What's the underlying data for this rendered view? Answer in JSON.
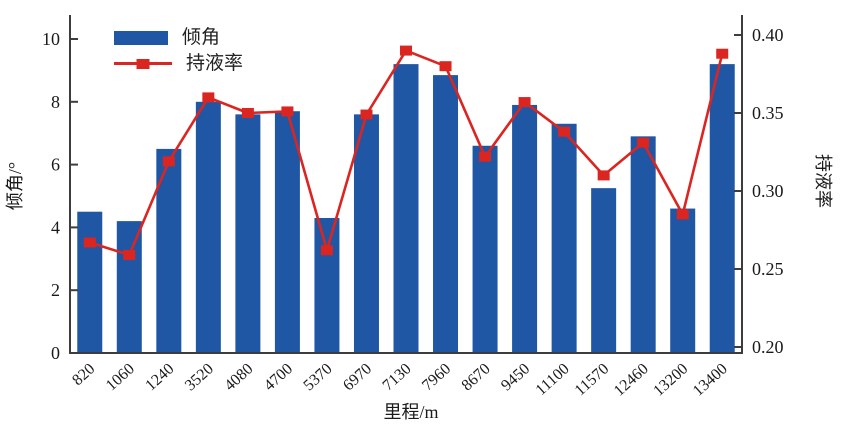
{
  "chart_data": {
    "type": "bar",
    "title": "",
    "categories": [
      "820",
      "1060",
      "1240",
      "3520",
      "4080",
      "4700",
      "5370",
      "6970",
      "7130",
      "7960",
      "8670",
      "9450",
      "11100",
      "11570",
      "12460",
      "13200",
      "13400"
    ],
    "series": [
      {
        "name": "倾角",
        "type": "bar",
        "axis": "left",
        "values": [
          4.5,
          4.2,
          6.5,
          8.0,
          7.6,
          7.7,
          4.3,
          7.6,
          9.2,
          8.85,
          6.6,
          7.9,
          7.3,
          5.25,
          6.9,
          4.6,
          9.2
        ]
      },
      {
        "name": "持液率",
        "type": "line",
        "axis": "right",
        "values": [
          0.267,
          0.259,
          0.319,
          0.36,
          0.35,
          0.351,
          0.262,
          0.349,
          0.39,
          0.38,
          0.322,
          0.357,
          0.338,
          0.31,
          0.331,
          0.285,
          0.388
        ]
      }
    ],
    "left_axis": {
      "label": "倾角/°",
      "tick_labels": [
        "0",
        "2",
        "4",
        "6",
        "8",
        "10"
      ],
      "range": [
        0,
        10.8
      ]
    },
    "right_axis": {
      "label": "持液率",
      "tick_labels": [
        "0.20",
        "0.25",
        "0.30",
        "0.35",
        "0.40"
      ],
      "range": [
        0.196,
        0.413
      ]
    },
    "x_axis": {
      "label": "里程/m"
    },
    "legend": {
      "position": "upper-left",
      "items": [
        "倾角",
        "持液率"
      ]
    },
    "grid": "off",
    "colors": {
      "bar": "#1f57a5",
      "line": "#db2521",
      "axis": "#3d3d3d",
      "text": "#1a1a1a"
    }
  }
}
